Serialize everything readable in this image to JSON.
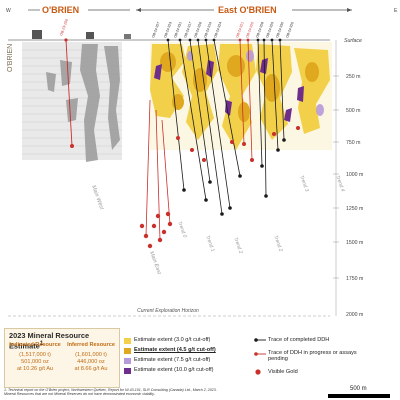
{
  "header": {
    "west_letter": "W",
    "east_letter": "E",
    "obrien_label": "O'BRIEN",
    "east_obrien_label": "East O'BRIEN"
  },
  "side_labels": {
    "left_obrien": "O'BRIEN"
  },
  "depth_labels": [
    "Surface",
    "250 m",
    "500 m",
    "750 m",
    "1000 m",
    "1250 m",
    "1500 m",
    "1750 m",
    "2000 m"
  ],
  "section_labels": {
    "main_west": "Main West",
    "main_east": "Main East",
    "trend_0": "Trend 0",
    "trend_1": "Trend 1",
    "trend_2": "Trend 2",
    "trend_3": "Trend 3",
    "trend_4": "Trend 4",
    "horizon": "Current Exploration Horizon"
  },
  "drill_holes": {
    "left_hole": "OB-23-259",
    "top_holes": [
      "OB-24-327",
      "OB-24-323",
      "OB-24-331",
      "OB-24-317",
      "OB-24-326",
      "OB-24-319",
      "OB-24-324",
      "OB-24-321",
      "OB-24-320",
      "OB-24-328",
      "OB-24-329",
      "OB-24-330",
      "OB-24-325"
    ]
  },
  "estimate": {
    "title": "2023 Mineral Resource Estimate",
    "title_superscript": "1",
    "indicated_heading": "Indicated Resource",
    "inferred_heading": "Inferred Resource",
    "indicated_tonnes": "(1,517,000 t)",
    "indicated_oz": "501,000 oz",
    "indicated_grade": "at 10.26 g/t Au",
    "inferred_tonnes": "(1,601,000 t)",
    "inferred_oz": "446,000 oz",
    "inferred_grade": "at 8.66 g/t Au"
  },
  "legend": {
    "extent_3": "Estimate extent (3.0 g/t cut-off)",
    "extent_45": "Estimate extent (4.5 g/t cut-off)",
    "extent_75": "Estimate extent (7.5 g/t cut-off)",
    "extent_10": "Estimate extent (10.0 g/t cut-off)",
    "trace_completed": "Trace of completed DDH",
    "trace_progress": "Trace of DDH in progress or assays pending",
    "visible_gold": "Visible Gold"
  },
  "colors": {
    "extent_3": "#f2d04a",
    "extent_45": "#e0a81e",
    "extent_75": "#b79bd8",
    "extent_10": "#6d2e8c",
    "drill_completed": "#1a1a1a",
    "drill_progress": "#c9302c",
    "header_orange": "#d06a14"
  },
  "footnote": {
    "line1": "1. Technical report on the O'Brien project, Northwestern Québec, Report for NI 43-101, SLR Consulting (Canada) Ltd., March 2, 2023.",
    "line2": "Mineral Resources that are not Mineral Reserves do not have demonstrated economic viability."
  },
  "scale": {
    "label": "500 m"
  }
}
